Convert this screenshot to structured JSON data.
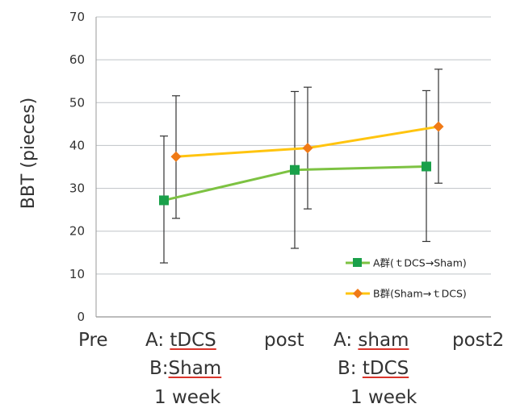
{
  "chart_data": {
    "type": "line",
    "ylabel": "BBT (pieces)",
    "ylim": [
      0,
      70
    ],
    "yticks": [
      0,
      10,
      20,
      30,
      40,
      50,
      60,
      70
    ],
    "grid": true,
    "legend_position": "bottom-right",
    "categories": [
      "Pre",
      "post",
      "post2"
    ],
    "between_labels": [
      {
        "A_prefix": "A: ",
        "A_value": "tDCS",
        "B_prefix": "B:",
        "B_value": "Sham",
        "duration": "1 week"
      },
      {
        "A_prefix": "A: ",
        "A_value": "sham",
        "B_prefix": "B: ",
        "B_value": "tDCS",
        "duration": "1 week"
      }
    ],
    "series": [
      {
        "name": "A群(ｔDCS→Sham)",
        "color": "#7dc242",
        "marker_color": "#1aa04a",
        "marker": "square",
        "values": [
          27.2,
          34.3,
          35.1
        ],
        "err_low": [
          12.6,
          16.0,
          17.6
        ],
        "err_high": [
          42.2,
          52.6,
          52.8
        ]
      },
      {
        "name": "B群(Sham→ｔDCS)",
        "color": "#ffc40f",
        "marker_color": "#f07a16",
        "marker": "diamond",
        "values": [
          37.4,
          39.4,
          44.4
        ],
        "err_low": [
          23.0,
          25.2,
          31.2
        ],
        "err_high": [
          51.6,
          53.6,
          57.8
        ]
      }
    ]
  }
}
